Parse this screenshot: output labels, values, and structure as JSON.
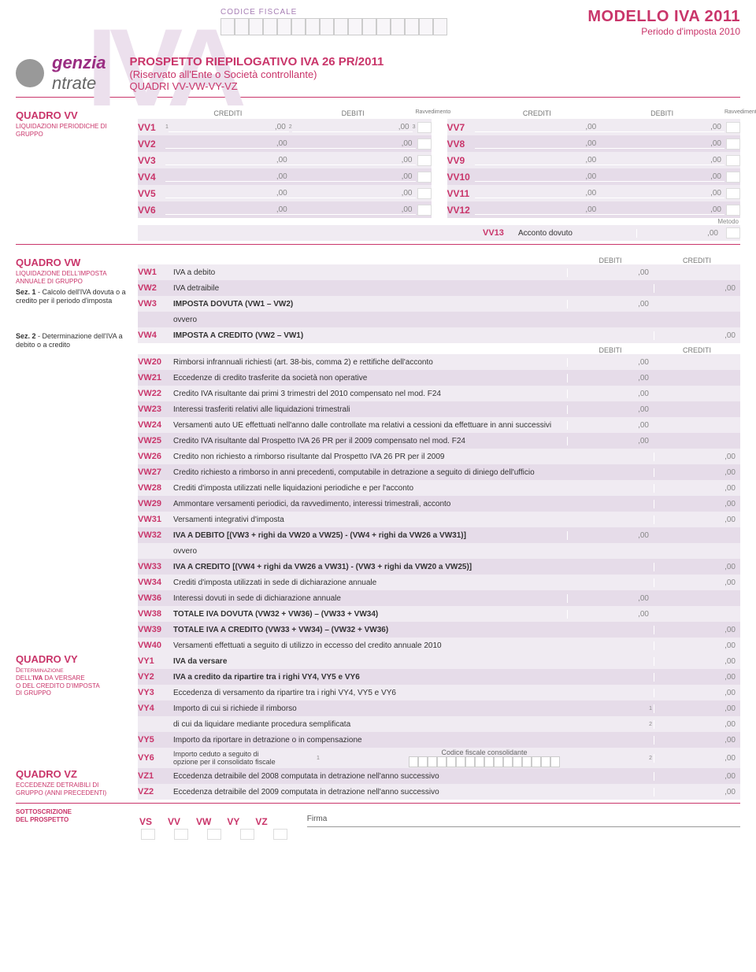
{
  "header": {
    "watermark": "IVA",
    "codice_fiscale_label": "CODICE FISCALE",
    "title_main": "MODELLO IVA 2011",
    "title_sub": "Periodo d'imposta 2010",
    "agency_left": "genzia",
    "agency_right": "ntrate",
    "prospetto_line1": "PROSPETTO RIEPILOGATIVO IVA 26 PR/2011",
    "prospetto_line2": "(Riservato all'Ente o Società controllante)",
    "prospetto_line3": "QUADRI VV-VW-VY-VZ"
  },
  "col_labels": {
    "crediti": "CREDITI",
    "debiti": "DEBITI",
    "ravvedimento": "Ravvedimento",
    "metodo": "Metodo"
  },
  "quadro_vv": {
    "title": "QUADRO VV",
    "subtitle": "LIQUIDAZIONI PERIODICHE DI GRUPPO",
    "left_rows": [
      {
        "code": "VV1"
      },
      {
        "code": "VV2"
      },
      {
        "code": "VV3"
      },
      {
        "code": "VV4"
      },
      {
        "code": "VV5"
      },
      {
        "code": "VV6"
      }
    ],
    "right_rows": [
      {
        "code": "VV7"
      },
      {
        "code": "VV8"
      },
      {
        "code": "VV9"
      },
      {
        "code": "VV10"
      },
      {
        "code": "VV11"
      },
      {
        "code": "VV12"
      }
    ],
    "vv13": {
      "code": "VV13",
      "label": "Acconto dovuto"
    },
    "zero": ",00",
    "sup1": "1",
    "sup2": "2",
    "sup3": "3"
  },
  "quadro_vw": {
    "title": "QUADRO VW",
    "subtitle": "LIQUIDAZIONE DELL'IMPOSTA ANNUALE DI GRUPPO",
    "sez1": "Sez. 1 - Calcolo dell'IVA dovuta o a credito per il periodo d'imposta",
    "sez2": "Sez. 2 - Determinazione dell'IVA a debito o a credito",
    "rows_sez1": [
      {
        "code": "VW1",
        "desc": "IVA a debito",
        "col": "debiti"
      },
      {
        "code": "VW2",
        "desc": "IVA detraibile",
        "col": "crediti"
      },
      {
        "code": "VW3",
        "desc": "IMPOSTA DOVUTA (VW1 – VW2)",
        "col": "debiti",
        "bold": true
      },
      {
        "code": "",
        "desc": "ovvero",
        "col": "none"
      },
      {
        "code": "VW4",
        "desc": "IMPOSTA A CREDITO (VW2 – VW1)",
        "col": "crediti",
        "bold": true
      }
    ],
    "rows_sez2": [
      {
        "code": "VW20",
        "desc": "Rimborsi infrannuali richiesti (art. 38-bis, comma 2) e rettifiche dell'acconto",
        "col": "debiti"
      },
      {
        "code": "VW21",
        "desc": "Eccedenze di credito trasferite da società non operative",
        "col": "debiti"
      },
      {
        "code": "VW22",
        "desc": "Credito IVA risultante dai primi 3 trimestri del 2010 compensato nel mod. F24",
        "col": "debiti"
      },
      {
        "code": "VW23",
        "desc": "Interessi trasferiti relativi alle liquidazioni trimestrali",
        "col": "debiti"
      },
      {
        "code": "VW24",
        "desc": "Versamenti auto UE effettuati nell'anno dalle controllate ma relativi a cessioni da effettuare in anni successivi",
        "col": "debiti"
      },
      {
        "code": "VW25",
        "desc": "Credito IVA risultante dal Prospetto IVA 26 PR per il 2009 compensato nel mod. F24",
        "col": "debiti"
      },
      {
        "code": "VW26",
        "desc": "Credito non richiesto a rimborso risultante dal Prospetto IVA 26 PR per il 2009",
        "col": "crediti"
      },
      {
        "code": "VW27",
        "desc": "Credito richiesto a rimborso in anni precedenti, computabile in detrazione a seguito di diniego dell'ufficio",
        "col": "crediti"
      },
      {
        "code": "VW28",
        "desc": "Crediti d'imposta utilizzati nelle liquidazioni periodiche e per l'acconto",
        "col": "crediti"
      },
      {
        "code": "VW29",
        "desc": "Ammontare versamenti periodici, da ravvedimento, interessi trimestrali, acconto",
        "col": "crediti"
      },
      {
        "code": "VW31",
        "desc": "Versamenti integrativi d'imposta",
        "col": "crediti"
      },
      {
        "code": "VW32",
        "desc": "IVA A DEBITO [(VW3 + righi da VW20 a VW25) - (VW4 + righi da VW26 a VW31)]",
        "col": "debiti",
        "bold": true
      },
      {
        "code": "",
        "desc": "ovvero",
        "col": "none"
      },
      {
        "code": "VW33",
        "desc": "IVA A CREDITO [(VW4 + righi da VW26 a VW31) - (VW3 + righi da VW20 a VW25)]",
        "col": "crediti",
        "bold": true
      },
      {
        "code": "VW34",
        "desc": "Crediti d'imposta utilizzati in sede di dichiarazione annuale",
        "col": "crediti"
      },
      {
        "code": "VW36",
        "desc": "Interessi dovuti in sede di dichiarazione annuale",
        "col": "debiti"
      },
      {
        "code": "VW38",
        "desc": "TOTALE IVA DOVUTA (VW32 + VW36) – (VW33 + VW34)",
        "col": "debiti",
        "bold": true
      },
      {
        "code": "VW39",
        "desc": "TOTALE IVA A CREDITO (VW33 + VW34) – (VW32 + VW36)",
        "col": "crediti",
        "bold": true
      },
      {
        "code": "VW40",
        "desc": "Versamenti effettuati a seguito di utilizzo in eccesso del credito annuale 2010",
        "col": "crediti"
      }
    ]
  },
  "quadro_vy": {
    "title": "QUADRO VY",
    "subtitle": "DETERMINAZIONE DELL'IVA DA VERSARE O DEL CREDITO D'IMPOSTA DI GRUPPO",
    "rows": [
      {
        "code": "VY1",
        "desc": "IVA da versare",
        "bold": true
      },
      {
        "code": "VY2",
        "desc_pre": "IVA a credito ",
        "desc": "da ripartire tra i righi VY4, VY5 e VY6",
        "bold": true
      },
      {
        "code": "VY3",
        "desc": "Eccedenza di versamento da ripartire tra i righi VY4, VY5 e VY6"
      },
      {
        "code": "VY4",
        "desc": "Importo di cui si richiede il rimborso",
        "sup": "1"
      },
      {
        "code": "",
        "desc": "di cui da liquidare mediante procedura semplificata",
        "sup": "2"
      },
      {
        "code": "VY5",
        "desc": "Importo da riportare in detrazione o in compensazione"
      }
    ],
    "vy6": {
      "code": "VY6",
      "desc1": "Importo ceduto a seguito di",
      "desc2": "opzione per il consolidato fiscale",
      "cf_label": "Codice fiscale consolidante",
      "sup1": "1",
      "sup2": "2"
    }
  },
  "quadro_vz": {
    "title": "QUADRO VZ",
    "subtitle": "ECCEDENZE DETRAIBILI DI GRUPPO (ANNI PRECEDENTI)",
    "rows": [
      {
        "code": "VZ1",
        "desc": "Eccedenza detraibile del 2008 computata in detrazione nell'anno successivo"
      },
      {
        "code": "VZ2",
        "desc": "Eccedenza detraibile del 2009 computata in detrazione nell'anno successivo"
      }
    ]
  },
  "footer": {
    "title": "SOTTOSCRIZIONE DEL PROSPETTO",
    "labels": [
      "VS",
      "VV",
      "VW",
      "VY",
      "VZ"
    ],
    "firma": "Firma"
  },
  "zero": ",00"
}
